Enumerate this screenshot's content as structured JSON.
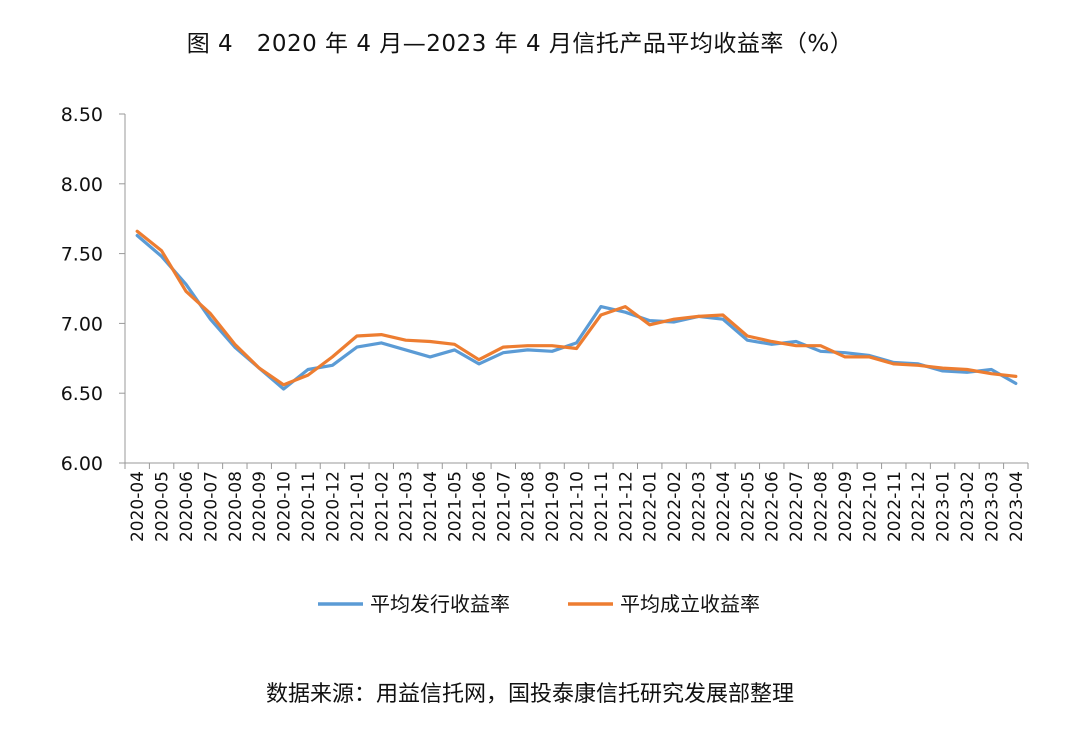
{
  "chart_data": {
    "type": "line",
    "title": "图 4　2020 年 4 月—2023 年 4 月信托产品平均收益率（%）",
    "xlabel": "",
    "ylabel": "",
    "ylim": [
      6.0,
      8.5
    ],
    "yticks": [
      "8.50",
      "8.00",
      "7.50",
      "7.00",
      "6.50",
      "6.00"
    ],
    "yticks_values": [
      8.5,
      8.0,
      7.5,
      7.0,
      6.5,
      6.0
    ],
    "grid": false,
    "legend_position": "bottom",
    "categories": [
      "2020-04",
      "2020-05",
      "2020-06",
      "2020-07",
      "2020-08",
      "2020-09",
      "2020-10",
      "2020-11",
      "2020-12",
      "2021-01",
      "2021-02",
      "2021-03",
      "2021-04",
      "2021-05",
      "2021-06",
      "2021-07",
      "2021-08",
      "2021-09",
      "2021-10",
      "2021-11",
      "2021-12",
      "2022-01",
      "2022-02",
      "2022-03",
      "2022-04",
      "2022-05",
      "2022-06",
      "2022-07",
      "2022-08",
      "2022-09",
      "2022-10",
      "2022-11",
      "2022-12",
      "2023-01",
      "2023-02",
      "2023-03",
      "2023-04"
    ],
    "series": [
      {
        "name": "平均发行收益率",
        "color": "#5B9BD5",
        "values": [
          7.63,
          7.48,
          7.28,
          7.03,
          6.83,
          6.68,
          6.53,
          6.67,
          6.7,
          6.83,
          6.86,
          6.81,
          6.76,
          6.81,
          6.71,
          6.79,
          6.81,
          6.8,
          6.86,
          7.12,
          7.08,
          7.02,
          7.01,
          7.05,
          7.03,
          6.88,
          6.85,
          6.87,
          6.8,
          6.79,
          6.77,
          6.72,
          6.71,
          6.66,
          6.65,
          6.67,
          6.57
        ]
      },
      {
        "name": "平均成立收益率",
        "color": "#ED7D31",
        "values": [
          7.66,
          7.52,
          7.23,
          7.07,
          6.85,
          6.68,
          6.56,
          6.63,
          6.76,
          6.91,
          6.92,
          6.88,
          6.87,
          6.85,
          6.74,
          6.83,
          6.84,
          6.84,
          6.82,
          7.06,
          7.12,
          6.99,
          7.03,
          7.05,
          7.06,
          6.91,
          6.87,
          6.84,
          6.84,
          6.76,
          6.76,
          6.71,
          6.7,
          6.68,
          6.67,
          6.64,
          6.62
        ]
      }
    ]
  },
  "source": "数据来源：用益信托网，国投泰康信托研究发展部整理"
}
